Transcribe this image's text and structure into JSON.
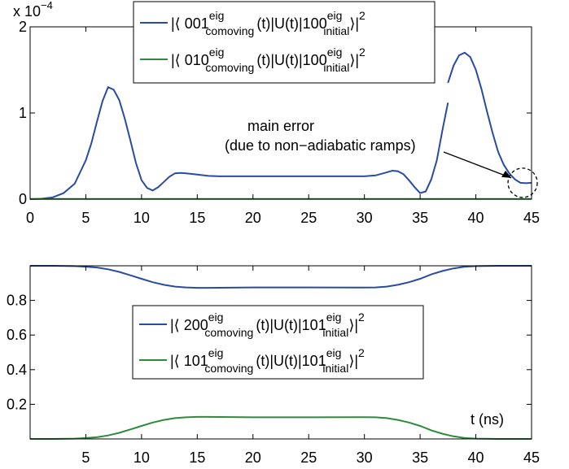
{
  "chart_data": [
    {
      "type": "line",
      "title": "",
      "xlabel": "",
      "ylabel": "",
      "exponent_label": "x 10",
      "exponent_sup": "−4",
      "xlim": [
        0,
        45
      ],
      "ylim": [
        0,
        2
      ],
      "xticks": [
        "0",
        "5",
        "10",
        "15",
        "20",
        "25",
        "30",
        "35",
        "40",
        "45"
      ],
      "yticks": [
        "0",
        "1",
        "2"
      ],
      "grid": false,
      "legend_position": "top",
      "legend": [
        {
          "pre": "|⟨ 001",
          "sup": "eig",
          "sub": "comoving",
          "mid": "(t)|U(t)|100",
          "sup2": "eig",
          "sub2": "initial",
          "post": "⟩|",
          "exp": "2"
        },
        {
          "pre": "|⟨ 010",
          "sup": "eig",
          "sub": "comoving",
          "mid": "(t)|U(t)|100",
          "sup2": "eig",
          "sub2": "initial",
          "post": "⟩|",
          "exp": "2"
        }
      ],
      "annotation": {
        "line1": "main error",
        "line2": "(due to non−adiabatic ramps)",
        "x": 44.2,
        "y": 0.19
      },
      "series": [
        {
          "color": "#2a4ba3",
          "x": [
            0,
            1,
            2,
            3,
            4,
            5,
            5.5,
            6,
            6.5,
            7,
            7.5,
            8,
            8.5,
            9,
            9.5,
            10,
            10.5,
            11,
            11.5,
            12,
            12.5,
            13,
            13.5,
            14,
            15,
            16,
            17,
            18,
            20,
            22,
            25,
            28,
            30,
            31,
            32,
            32.5,
            33,
            33.5,
            34,
            34.5,
            35,
            35.5,
            36,
            36.5,
            37,
            37.5
          ],
          "y": [
            0,
            0.005,
            0.02,
            0.07,
            0.18,
            0.45,
            0.65,
            0.9,
            1.14,
            1.3,
            1.27,
            1.15,
            0.93,
            0.68,
            0.42,
            0.22,
            0.13,
            0.1,
            0.14,
            0.2,
            0.26,
            0.3,
            0.305,
            0.3,
            0.285,
            0.27,
            0.265,
            0.265,
            0.265,
            0.265,
            0.265,
            0.265,
            0.265,
            0.275,
            0.31,
            0.33,
            0.325,
            0.29,
            0.22,
            0.14,
            0.07,
            0.09,
            0.23,
            0.45,
            0.8,
            1.12
          ]
        },
        {
          "color": "#2a4ba3",
          "x": [
            37.5,
            38,
            38.5,
            39,
            39.5,
            40,
            40.5,
            41,
            41.5,
            42,
            42.5,
            43,
            43.5,
            44,
            44.5,
            45
          ],
          "y": [
            1.35,
            1.55,
            1.67,
            1.7,
            1.65,
            1.5,
            1.28,
            1.02,
            0.77,
            0.55,
            0.4,
            0.3,
            0.23,
            0.19,
            0.185,
            0.19
          ]
        },
        {
          "color": "#2e8b3c",
          "x": [
            0,
            45
          ],
          "y": [
            0.003,
            0.003
          ]
        }
      ]
    },
    {
      "type": "line",
      "title": "",
      "xlabel": "t (ns)",
      "ylabel": "",
      "xlim": [
        0,
        45
      ],
      "ylim": [
        0,
        1
      ],
      "xticks": [
        "5",
        "10",
        "15",
        "20",
        "25",
        "30",
        "35",
        "40",
        "45"
      ],
      "yticks": [
        "0.2",
        "0.4",
        "0.6",
        "0.8"
      ],
      "grid": false,
      "legend_position": "center",
      "legend": [
        {
          "pre": "|⟨ 200",
          "sup": "eig",
          "sub": "comoving",
          "mid": "(t)|U(t)|101",
          "sup2": "eig",
          "sub2": "initial",
          "post": "⟩|",
          "exp": "2"
        },
        {
          "pre": "|⟨ 101",
          "sup": "eig",
          "sub": "comoving",
          "mid": "(t)|U(t)|101",
          "sup2": "eig",
          "sub2": "initial",
          "post": "⟩|",
          "exp": "2"
        }
      ],
      "series": [
        {
          "color": "#2a4ba3",
          "x": [
            0,
            2,
            4,
            5,
            6,
            7,
            8,
            9,
            10,
            11,
            12,
            13,
            14,
            15,
            16,
            20,
            25,
            29,
            30,
            31,
            32,
            33,
            34,
            35,
            36,
            37,
            38,
            39,
            40,
            42,
            45
          ],
          "y": [
            1.0,
            1.0,
            0.998,
            0.995,
            0.99,
            0.98,
            0.965,
            0.945,
            0.925,
            0.905,
            0.89,
            0.88,
            0.875,
            0.873,
            0.873,
            0.875,
            0.875,
            0.874,
            0.874,
            0.875,
            0.88,
            0.89,
            0.905,
            0.925,
            0.95,
            0.97,
            0.985,
            0.995,
            0.998,
            1.0,
            1.0
          ]
        },
        {
          "color": "#2e8b3c",
          "x": [
            0,
            2,
            4,
            5,
            6,
            7,
            8,
            9,
            10,
            11,
            12,
            13,
            14,
            15,
            16,
            20,
            25,
            29,
            30,
            31,
            32,
            33,
            34,
            35,
            36,
            37,
            38,
            39,
            40,
            42,
            45
          ],
          "y": [
            0.0,
            0.0,
            0.002,
            0.005,
            0.01,
            0.02,
            0.035,
            0.055,
            0.075,
            0.095,
            0.11,
            0.12,
            0.125,
            0.127,
            0.127,
            0.125,
            0.125,
            0.126,
            0.126,
            0.125,
            0.12,
            0.11,
            0.095,
            0.075,
            0.05,
            0.03,
            0.015,
            0.005,
            0.002,
            0.0,
            0.0
          ]
        }
      ]
    }
  ]
}
